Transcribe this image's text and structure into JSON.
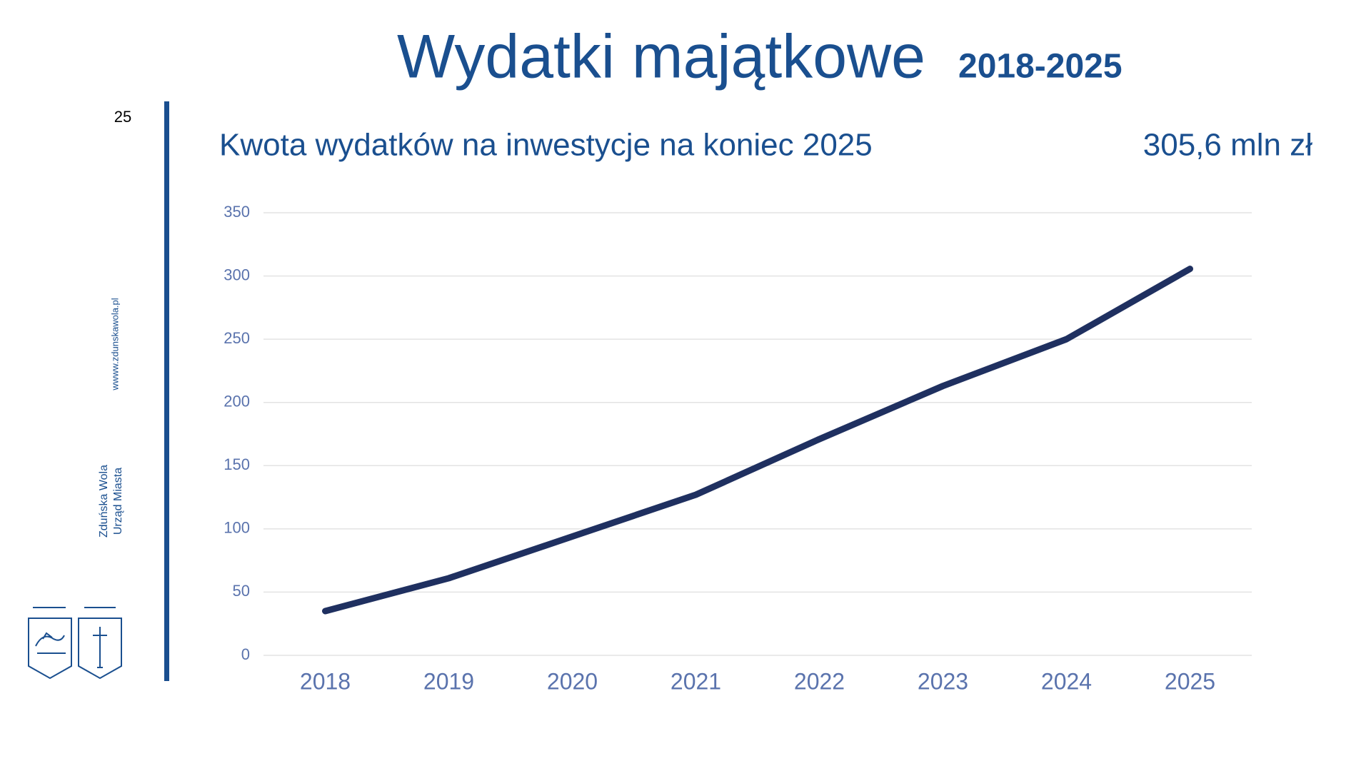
{
  "slide": {
    "page_number": "25",
    "website": "wwww.zdunskawola.pl",
    "org_lines": [
      "Zduńska Wola",
      "Urząd Miasta"
    ]
  },
  "chart_data": {
    "type": "line",
    "title": "Wydatki majątkowe",
    "title_years": "2018-2025",
    "subtitle": "Kwota wydatków na inwestycje na koniec 2025",
    "total_label": "305,6 mln zł",
    "categories": [
      "2018",
      "2019",
      "2020",
      "2021",
      "2022",
      "2023",
      "2024",
      "2025"
    ],
    "values": [
      35,
      61,
      94,
      127,
      171,
      213,
      250,
      305.6
    ],
    "color": "#1f3060",
    "ylim": [
      0,
      350
    ],
    "yticks": [
      0,
      50,
      100,
      150,
      200,
      250,
      300,
      350
    ],
    "grid": true
  }
}
